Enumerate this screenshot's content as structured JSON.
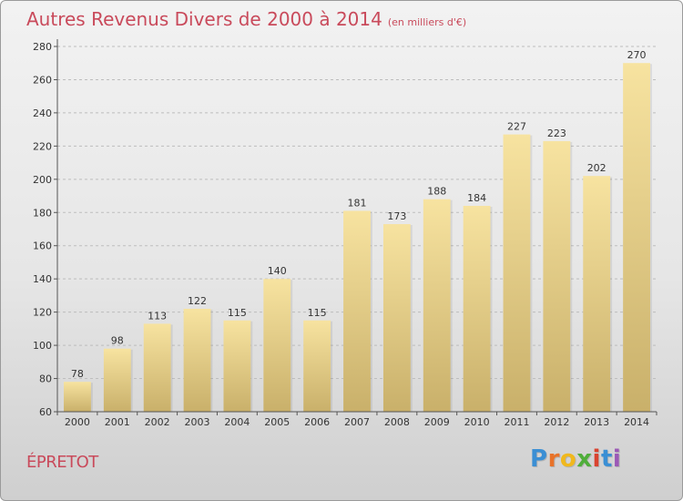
{
  "title": "Autres Revenus Divers de 2000 à 2014",
  "subtitle": "(en milliers d'€)",
  "commune": "ÉPRETOT",
  "logo": {
    "letters": [
      "P",
      "r",
      "o",
      "x",
      "i",
      "t",
      "i"
    ],
    "colors": [
      "#3b8fd4",
      "#e8732a",
      "#f0b81d",
      "#4fae3a",
      "#d9432f",
      "#3b8fd4",
      "#9b59b6"
    ]
  },
  "colors": {
    "title": "#c94a5b",
    "bar_top": "#f7e3a0",
    "bar_bottom": "#c9b06a"
  },
  "chart_data": {
    "type": "bar",
    "title": "Autres Revenus Divers de 2000 à 2014",
    "subtitle": "(en milliers d'€)",
    "xlabel": "",
    "ylabel": "",
    "categories": [
      "2000",
      "2001",
      "2002",
      "2003",
      "2004",
      "2005",
      "2006",
      "2007",
      "2008",
      "2009",
      "2010",
      "2011",
      "2012",
      "2013",
      "2014"
    ],
    "values": [
      78,
      98,
      113,
      122,
      115,
      140,
      115,
      181,
      173,
      188,
      184,
      227,
      223,
      202,
      270
    ],
    "ylim": [
      60,
      280
    ],
    "yticks": [
      60,
      80,
      100,
      120,
      140,
      160,
      180,
      200,
      220,
      240,
      260,
      280
    ],
    "grid": "horizontal-dashed",
    "legend": "none"
  }
}
